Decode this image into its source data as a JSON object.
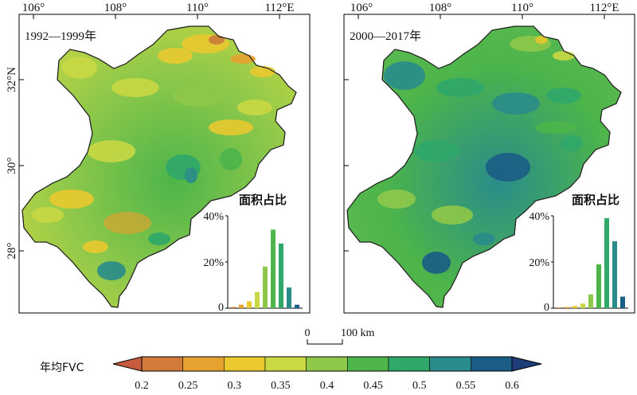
{
  "figure": {
    "lon_ticks": [
      "106°",
      "108°",
      "110°",
      "112°E"
    ],
    "lat_ticks": [
      "32°N",
      "30°",
      "28°"
    ],
    "scalebar": {
      "start": "0",
      "end": "100 km"
    }
  },
  "panels": [
    {
      "period": "1992—1999年",
      "inset": {
        "title": "面积占比",
        "yticks": [
          "40%",
          "20%",
          "0"
        ],
        "ylim": [
          0,
          40
        ],
        "bar_values": [
          0.5,
          1.5,
          3,
          7,
          18,
          34,
          28,
          9,
          1.5
        ]
      }
    },
    {
      "period": "2000—2017年",
      "inset": {
        "title": "面积占比",
        "yticks": [
          "40%",
          "20%",
          "0"
        ],
        "ylim": [
          0,
          40
        ],
        "bar_values": [
          0.3,
          0.5,
          1,
          2,
          6,
          19,
          39,
          29,
          5
        ]
      }
    }
  ],
  "legend": {
    "label": "年均FVC",
    "ticks": [
      "0.2",
      "0.25",
      "0.3",
      "0.35",
      "0.4",
      "0.45",
      "0.5",
      "0.55",
      "0.6"
    ],
    "low_color": "#c85a3e",
    "high_color": "#1d3d78",
    "colors": [
      "#d17a3a",
      "#e6a22f",
      "#e9c92f",
      "#c9d843",
      "#8ec84a",
      "#4db54a",
      "#2fa86a",
      "#2a8c8a",
      "#1a5e86"
    ]
  }
}
